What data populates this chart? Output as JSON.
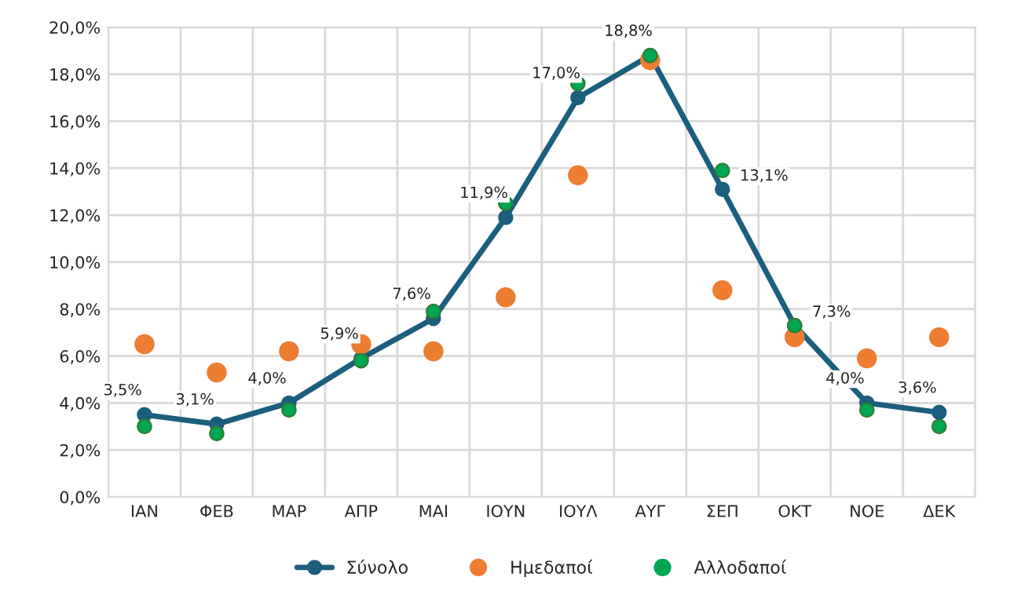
{
  "chart_data": {
    "type": "line",
    "categories": [
      "ΙΑΝ",
      "ΦΕΒ",
      "ΜΑΡ",
      "ΑΠΡ",
      "ΜΑΙ",
      "ΙΟΥΝ",
      "ΙΟΥΛ",
      "ΑΥΓ",
      "ΣΕΠ",
      "ΟΚΤ",
      "ΝΟΕ",
      "ΔΕΚ"
    ],
    "series": [
      {
        "name": "Σύνολο",
        "color": "#1b5e7e",
        "marker": "circle",
        "line_style": "solid",
        "values": [
          3.5,
          3.1,
          4.0,
          5.9,
          7.6,
          11.9,
          17.0,
          18.8,
          13.1,
          7.3,
          4.0,
          3.6
        ],
        "value_labels": [
          "3,5%",
          "3,1%",
          "4,0%",
          "5,9%",
          "7,6%",
          "11,9%",
          "17,0%",
          "18,8%",
          "13,1%",
          "7,3%",
          "4,0%",
          "3,6%"
        ]
      },
      {
        "name": "Ημεδαποί",
        "type": "scatter",
        "color": "#ed7d31",
        "marker": "circle",
        "values": [
          6.5,
          5.3,
          6.2,
          6.5,
          6.2,
          8.5,
          13.7,
          18.6,
          8.8,
          6.8,
          5.9,
          6.8
        ]
      },
      {
        "name": "Αλλοδαποί",
        "type": "scatter",
        "color": "#00a651",
        "marker": "circle",
        "values": [
          3.0,
          2.7,
          3.7,
          5.8,
          7.9,
          12.5,
          17.6,
          18.8,
          13.9,
          7.3,
          3.7,
          3.0
        ]
      }
    ],
    "ylim": [
      0,
      20
    ],
    "yticks": [
      {
        "value": 0,
        "label": "0,0%"
      },
      {
        "value": 2,
        "label": "2,0%"
      },
      {
        "value": 4,
        "label": "4,0%"
      },
      {
        "value": 6,
        "label": "6,0%"
      },
      {
        "value": 8,
        "label": "8,0%"
      },
      {
        "value": 10,
        "label": "10,0%"
      },
      {
        "value": 12,
        "label": "12,0%"
      },
      {
        "value": 14,
        "label": "14,0%"
      },
      {
        "value": 16,
        "label": "16,0%"
      },
      {
        "value": 18,
        "label": "18,0%"
      },
      {
        "value": 20,
        "label": "20,0%"
      }
    ],
    "grid": true,
    "legend": "bottom"
  }
}
